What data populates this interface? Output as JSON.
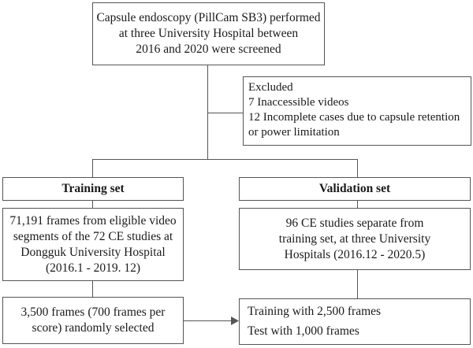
{
  "screening": {
    "lines": [
      "Capsule endoscopy (PillCam  SB3) performed",
      "at three University Hospital between",
      "2016 and 2020 were screened"
    ]
  },
  "excluded": {
    "title": "Excluded",
    "items": [
      "7 Inaccessible videos",
      "12 Incomplete cases due to capsule retention",
      "or power limitation"
    ]
  },
  "training_set": {
    "header": "Training set",
    "description": [
      "71,191 frames from eligible video",
      "segments of the 72 CE studies at",
      "Dongguk University Hospital",
      "(2016.1 - 2019. 12)"
    ],
    "selection": [
      "3,500 frames (700 frames per",
      "score) randomly selected"
    ]
  },
  "validation_set": {
    "header": "Validation set",
    "description": [
      "96 CE studies separate from",
      "training set, at three University",
      "Hospitals (2016.12 - 2020.5)"
    ]
  },
  "split": {
    "training": "Training with 2,500 frames",
    "test": "Test with 1,000 frames"
  }
}
